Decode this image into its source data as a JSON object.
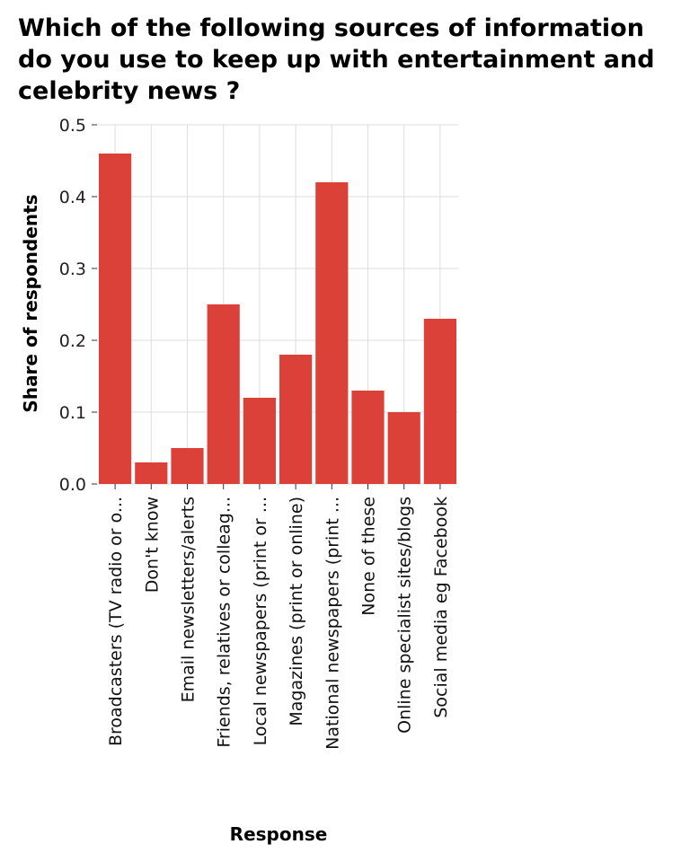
{
  "chart_data": {
    "type": "bar",
    "title": "Which of the following sources of information do you use to keep up with entertainment and celebrity news ?",
    "xlabel": "Response",
    "ylabel": "Share of respondents",
    "ylim": [
      0,
      0.5
    ],
    "yticks": [
      "0.0",
      "0.1",
      "0.2",
      "0.3",
      "0.4",
      "0.5"
    ],
    "grid": true,
    "legend": "none",
    "categories": [
      "Broadcasters (TV radio or o...",
      "Don't know",
      "Email newsletters/alerts",
      "Friends, relatives or colleag...",
      "Local newspapers (print or ...",
      "Magazines (print or online)",
      "National newspapers (print ...",
      "None of these",
      "Online specialist sites/blogs",
      "Social media eg Facebook"
    ],
    "values": [
      0.46,
      0.03,
      0.05,
      0.25,
      0.12,
      0.18,
      0.42,
      0.13,
      0.1,
      0.23
    ],
    "bar_color": "#dc4139",
    "grid_color": "#dddddd"
  }
}
